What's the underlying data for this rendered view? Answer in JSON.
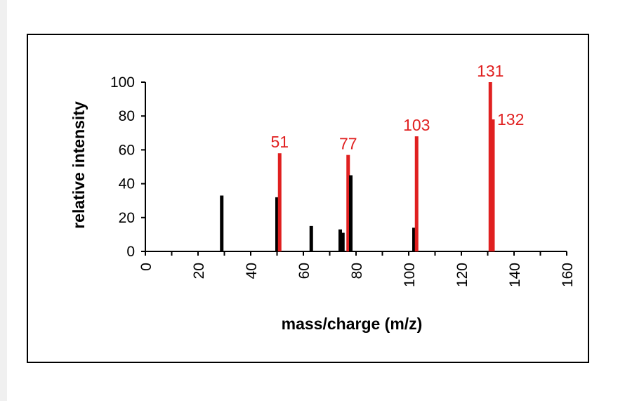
{
  "chart_data": {
    "type": "bar",
    "xlabel": "mass/charge (m/z)",
    "ylabel": "relative intensity",
    "xlim": [
      0,
      160
    ],
    "ylim": [
      0,
      100
    ],
    "xticks": [
      0,
      20,
      40,
      60,
      80,
      100,
      120,
      140,
      160
    ],
    "yticks": [
      0,
      20,
      40,
      60,
      80,
      100
    ],
    "grid": false,
    "colors": {
      "peak": "#000000",
      "highlight": "#e02020"
    },
    "peaks": [
      {
        "mz": 29,
        "intensity": 33,
        "highlight": false
      },
      {
        "mz": 50,
        "intensity": 32,
        "highlight": false
      },
      {
        "mz": 51,
        "intensity": 58,
        "highlight": true,
        "label": "51"
      },
      {
        "mz": 63,
        "intensity": 15,
        "highlight": false
      },
      {
        "mz": 74,
        "intensity": 13,
        "highlight": false
      },
      {
        "mz": 75,
        "intensity": 11,
        "highlight": false
      },
      {
        "mz": 77,
        "intensity": 57,
        "highlight": true,
        "label": "77"
      },
      {
        "mz": 78,
        "intensity": 45,
        "highlight": false
      },
      {
        "mz": 102,
        "intensity": 14,
        "highlight": false
      },
      {
        "mz": 103,
        "intensity": 68,
        "highlight": true,
        "label": "103"
      },
      {
        "mz": 131,
        "intensity": 100,
        "highlight": true,
        "label": "131"
      },
      {
        "mz": 132,
        "intensity": 78,
        "highlight": true,
        "label": "132"
      }
    ]
  }
}
